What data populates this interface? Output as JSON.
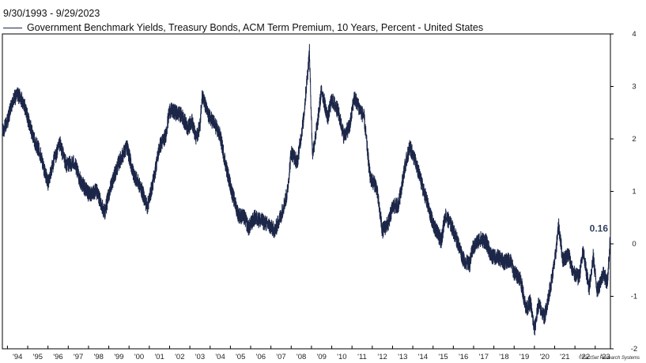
{
  "chart_data": {
    "type": "line",
    "date_range": "9/30/1993 - 9/29/2023",
    "series": [
      {
        "name": "Government Benchmark Yields, Treasury Bonds, ACM Term Premium, 10 Years, Percent - United States",
        "color": "#1b2648",
        "last_value_label": "0.16",
        "points": [
          [
            1993.75,
            2.1
          ],
          [
            1994.0,
            2.35
          ],
          [
            1994.3,
            2.75
          ],
          [
            1994.5,
            2.85
          ],
          [
            1994.8,
            2.7
          ],
          [
            1995.0,
            2.4
          ],
          [
            1995.3,
            2.0
          ],
          [
            1995.6,
            1.75
          ],
          [
            1996.0,
            1.15
          ],
          [
            1996.3,
            1.6
          ],
          [
            1996.6,
            1.9
          ],
          [
            1996.9,
            1.5
          ],
          [
            1997.3,
            1.55
          ],
          [
            1997.6,
            1.2
          ],
          [
            1998.0,
            0.95
          ],
          [
            1998.4,
            1.0
          ],
          [
            1998.8,
            0.6
          ],
          [
            1999.1,
            1.1
          ],
          [
            1999.5,
            1.55
          ],
          [
            1999.9,
            1.85
          ],
          [
            2000.2,
            1.35
          ],
          [
            2000.6,
            1.05
          ],
          [
            2000.9,
            0.7
          ],
          [
            2001.2,
            1.2
          ],
          [
            2001.5,
            1.85
          ],
          [
            2001.8,
            2.05
          ],
          [
            2002.0,
            2.55
          ],
          [
            2002.3,
            2.5
          ],
          [
            2002.6,
            2.45
          ],
          [
            2002.9,
            2.2
          ],
          [
            2003.1,
            2.35
          ],
          [
            2003.3,
            2.0
          ],
          [
            2003.5,
            2.25
          ],
          [
            2003.6,
            2.85
          ],
          [
            2003.9,
            2.45
          ],
          [
            2004.2,
            2.3
          ],
          [
            2004.5,
            2.05
          ],
          [
            2004.8,
            1.45
          ],
          [
            2005.1,
            0.95
          ],
          [
            2005.4,
            0.55
          ],
          [
            2005.7,
            0.5
          ],
          [
            2005.9,
            0.3
          ],
          [
            2006.2,
            0.5
          ],
          [
            2006.5,
            0.45
          ],
          [
            2006.9,
            0.35
          ],
          [
            2007.2,
            0.25
          ],
          [
            2007.5,
            0.55
          ],
          [
            2007.8,
            0.95
          ],
          [
            2008.0,
            1.75
          ],
          [
            2008.3,
            1.55
          ],
          [
            2008.6,
            2.35
          ],
          [
            2008.9,
            3.65
          ],
          [
            2009.05,
            1.7
          ],
          [
            2009.3,
            2.3
          ],
          [
            2009.5,
            2.95
          ],
          [
            2009.8,
            2.4
          ],
          [
            2010.0,
            2.75
          ],
          [
            2010.3,
            2.55
          ],
          [
            2010.6,
            2.05
          ],
          [
            2010.9,
            2.25
          ],
          [
            2011.1,
            2.8
          ],
          [
            2011.35,
            2.6
          ],
          [
            2011.6,
            2.4
          ],
          [
            2011.9,
            1.25
          ],
          [
            2012.2,
            1.1
          ],
          [
            2012.5,
            0.25
          ],
          [
            2012.8,
            0.4
          ],
          [
            2013.0,
            0.7
          ],
          [
            2013.3,
            0.75
          ],
          [
            2013.6,
            1.45
          ],
          [
            2013.85,
            1.85
          ],
          [
            2014.1,
            1.6
          ],
          [
            2014.4,
            1.2
          ],
          [
            2014.7,
            0.8
          ],
          [
            2014.9,
            0.5
          ],
          [
            2015.1,
            0.3
          ],
          [
            2015.4,
            0.05
          ],
          [
            2015.6,
            0.55
          ],
          [
            2015.9,
            0.35
          ],
          [
            2016.2,
            0.05
          ],
          [
            2016.5,
            -0.3
          ],
          [
            2016.8,
            -0.4
          ],
          [
            2016.95,
            -0.1
          ],
          [
            2017.3,
            0.1
          ],
          [
            2017.6,
            0.05
          ],
          [
            2017.9,
            -0.25
          ],
          [
            2018.2,
            -0.25
          ],
          [
            2018.5,
            -0.35
          ],
          [
            2018.8,
            -0.3
          ],
          [
            2019.0,
            -0.55
          ],
          [
            2019.3,
            -0.65
          ],
          [
            2019.6,
            -1.25
          ],
          [
            2019.8,
            -1.1
          ],
          [
            2020.0,
            -1.65
          ],
          [
            2020.2,
            -1.15
          ],
          [
            2020.5,
            -1.4
          ],
          [
            2020.8,
            -0.8
          ],
          [
            2021.0,
            -0.35
          ],
          [
            2021.2,
            0.35
          ],
          [
            2021.4,
            -0.3
          ],
          [
            2021.7,
            -0.2
          ],
          [
            2021.9,
            -0.55
          ],
          [
            2022.2,
            -0.65
          ],
          [
            2022.4,
            -0.15
          ],
          [
            2022.7,
            -0.85
          ],
          [
            2022.9,
            -0.25
          ],
          [
            2023.1,
            -0.9
          ],
          [
            2023.4,
            -0.55
          ],
          [
            2023.6,
            -0.75
          ],
          [
            2023.75,
            0.16
          ]
        ]
      }
    ],
    "y_ticks": [
      "4",
      "3",
      "2",
      "1",
      "0",
      "-1",
      "-2"
    ],
    "ylim": [
      -2,
      4
    ],
    "x_tick_labels": [
      "'94",
      "'95",
      "'96",
      "'97",
      "'98",
      "'99",
      "'00",
      "'01",
      "'02",
      "'03",
      "'04",
      "'05",
      "'06",
      "'07",
      "'08",
      "'09",
      "'10",
      "'11",
      "'12",
      "'13",
      "'14",
      "'15",
      "'16",
      "'17",
      "'18",
      "'19",
      "'20",
      "'21",
      "'22",
      "'23"
    ],
    "xlim": [
      1993.75,
      2023.75
    ],
    "grid": false,
    "legend_placement": "top-left"
  },
  "credit": "©FactSet Research Systems"
}
